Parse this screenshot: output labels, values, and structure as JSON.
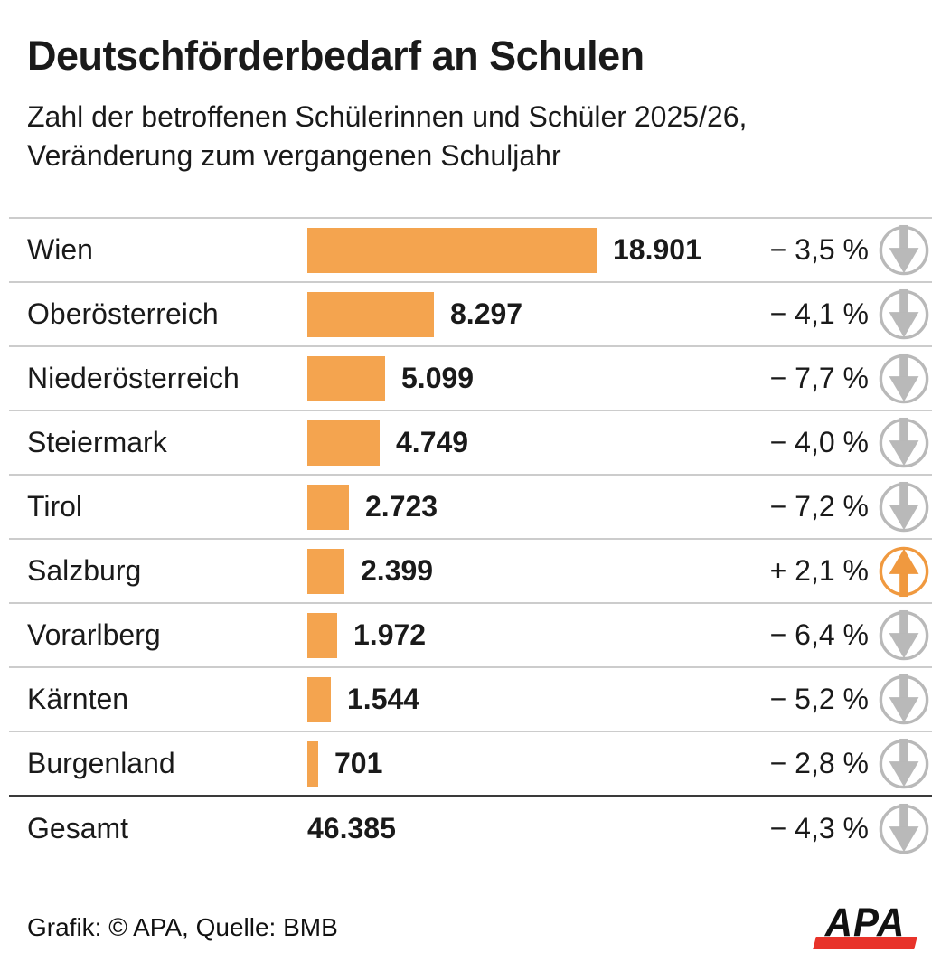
{
  "header": {
    "title": "Deutschförderbedarf an Schulen",
    "subtitle_line1": "Zahl der betroffenen Schülerinnen und Schüler 2025/26,",
    "subtitle_line2": "Veränderung zum vergangenen Schuljahr"
  },
  "rows": [
    {
      "label": "Wien",
      "value": 18901,
      "value_label": "18.901",
      "change": -3.5,
      "change_label": "− 3,5 %",
      "direction": "down"
    },
    {
      "label": "Oberösterreich",
      "value": 8297,
      "value_label": "8.297",
      "change": -4.1,
      "change_label": "− 4,1 %",
      "direction": "down"
    },
    {
      "label": "Niederösterreich",
      "value": 5099,
      "value_label": "5.099",
      "change": -7.7,
      "change_label": "− 7,7 %",
      "direction": "down"
    },
    {
      "label": "Steiermark",
      "value": 4749,
      "value_label": "4.749",
      "change": -4.0,
      "change_label": "− 4,0 %",
      "direction": "down"
    },
    {
      "label": "Tirol",
      "value": 2723,
      "value_label": "2.723",
      "change": -7.2,
      "change_label": "− 7,2 %",
      "direction": "down"
    },
    {
      "label": "Salzburg",
      "value": 2399,
      "value_label": "2.399",
      "change": 2.1,
      "change_label": "+ 2,1 %",
      "direction": "up"
    },
    {
      "label": "Vorarlberg",
      "value": 1972,
      "value_label": "1.972",
      "change": -6.4,
      "change_label": "− 6,4 %",
      "direction": "down"
    },
    {
      "label": "Kärnten",
      "value": 1544,
      "value_label": "1.544",
      "change": -5.2,
      "change_label": "− 5,2 %",
      "direction": "down"
    },
    {
      "label": "Burgenland",
      "value": 701,
      "value_label": "701",
      "change": -2.8,
      "change_label": "− 2,8 %",
      "direction": "down"
    },
    {
      "label": "Gesamt",
      "value": 46385,
      "value_label": "46.385",
      "change": -4.3,
      "change_label": "− 4,3 %",
      "direction": "down",
      "is_total": true
    }
  ],
  "footer": {
    "credit": "Grafik: © APA, Quelle: BMB",
    "logo_text": "APA"
  },
  "colors": {
    "bar": "#f4a44f",
    "arrow_up": "#f0993f",
    "arrow_down": "#b9b9b9",
    "separator": "#cccccc",
    "total_separator": "#3a3a3a",
    "logo_red": "#e8332a"
  },
  "chart_data": {
    "type": "bar",
    "orientation": "horizontal",
    "title": "Deutschförderbedarf an Schulen",
    "subtitle": "Zahl der betroffenen Schülerinnen und Schüler 2025/26, Veränderung zum vergangenen Schuljahr",
    "categories": [
      "Wien",
      "Oberösterreich",
      "Niederösterreich",
      "Steiermark",
      "Tirol",
      "Salzburg",
      "Vorarlberg",
      "Kärnten",
      "Burgenland"
    ],
    "series": [
      {
        "name": "Schülerinnen und Schüler 2025/26",
        "values": [
          18901,
          8297,
          5099,
          4749,
          2723,
          2399,
          1972,
          1544,
          701
        ]
      },
      {
        "name": "Veränderung zum vergangenen Schuljahr (%)",
        "values": [
          -3.5,
          -4.1,
          -7.7,
          -4.0,
          -7.2,
          2.1,
          -6.4,
          -5.2,
          -2.8
        ]
      }
    ],
    "values": [
      18901,
      8297,
      5099,
      4749,
      2723,
      2399,
      1972,
      1544,
      701
    ],
    "total": {
      "label": "Gesamt",
      "value": 46385,
      "change_percent": -4.3
    },
    "value_axis_range": [
      0,
      18901
    ],
    "grid": false,
    "legend": false,
    "source": "Grafik: © APA, Quelle: BMB"
  }
}
